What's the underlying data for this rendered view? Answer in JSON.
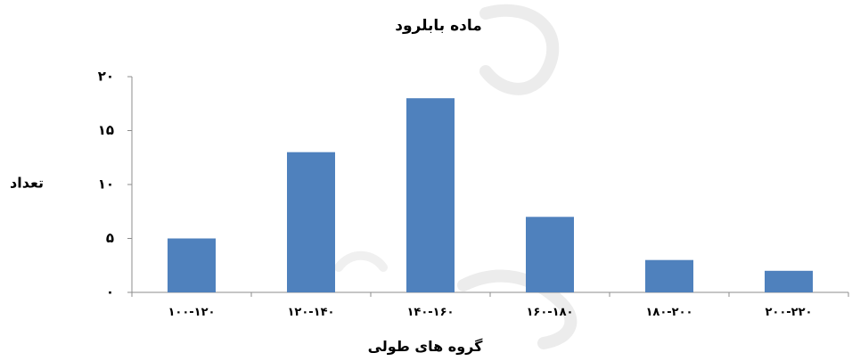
{
  "chart_data": {
    "type": "bar",
    "title": "ماده بابلرود",
    "xlabel": "گروه های طولی",
    "ylabel": "تعداد",
    "categories": [
      "۱۰۰-۱۲۰",
      "۱۲۰-۱۴۰",
      "۱۴۰-۱۶۰",
      "۱۶۰-۱۸۰",
      "۱۸۰-۲۰۰",
      "۲۰۰-۲۲۰"
    ],
    "values": [
      5,
      13,
      18,
      7,
      3,
      2
    ],
    "ylim": [
      0,
      20
    ],
    "yticks": [
      0,
      5,
      10,
      15,
      20
    ],
    "ytick_labels": [
      "۰",
      "۵",
      "۱۰",
      "۱۵",
      "۲۰"
    ],
    "grid": false,
    "legend": "none",
    "bar_color": "#4f81bd"
  }
}
